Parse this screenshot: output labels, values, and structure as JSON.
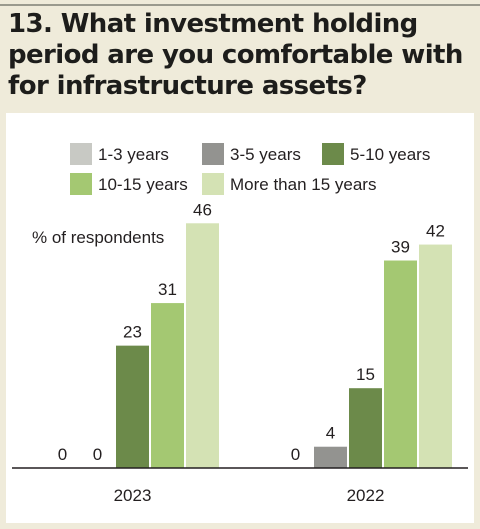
{
  "title": "13. What investment holding period are you comfortable with for infrastructure assets?",
  "chart_data": {
    "type": "bar",
    "categories": [
      "2023",
      "2022"
    ],
    "ylabel": "% of respondents",
    "ylim": [
      0,
      50
    ],
    "grid": false,
    "legend_position": "top",
    "series": [
      {
        "name": "1-3 years",
        "color": "#c8c9c4",
        "values": [
          0,
          0
        ]
      },
      {
        "name": "3-5 years",
        "color": "#939390",
        "values": [
          0,
          4
        ]
      },
      {
        "name": "5-10 years",
        "color": "#6c8a4a",
        "values": [
          23,
          15
        ]
      },
      {
        "name": "10-15 years",
        "color": "#a4c872",
        "values": [
          31,
          39
        ]
      },
      {
        "name": "More than 15 years",
        "color": "#d4e2b4",
        "values": [
          46,
          42
        ]
      }
    ]
  }
}
